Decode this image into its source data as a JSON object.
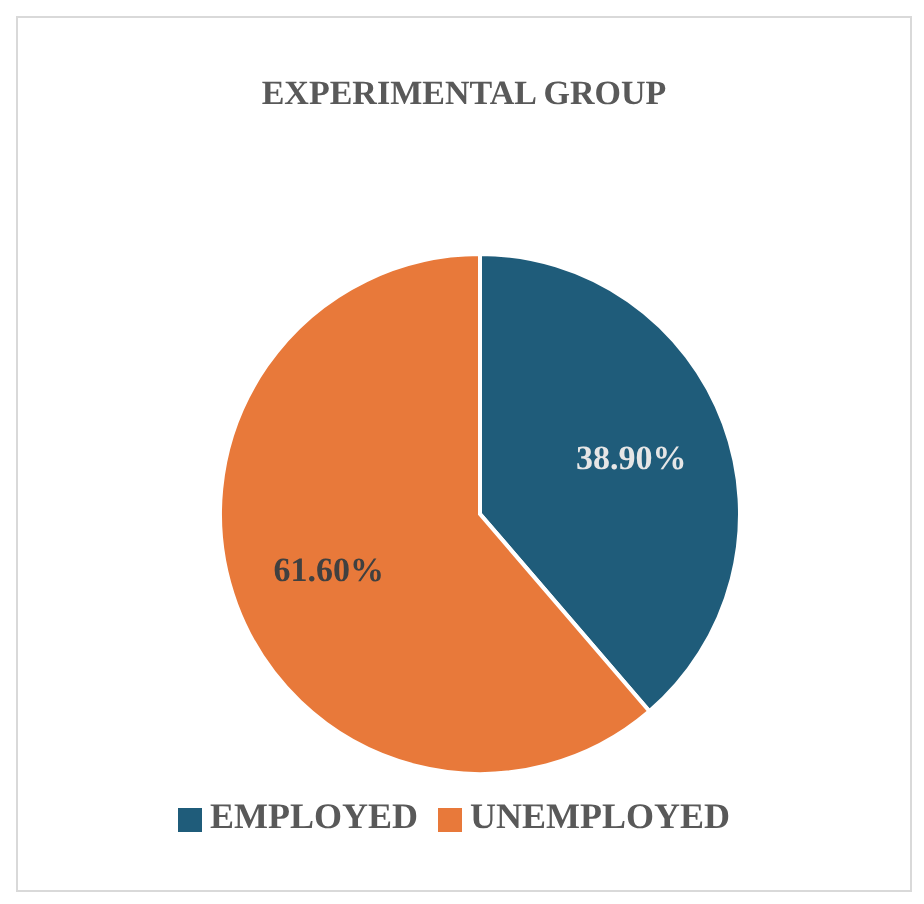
{
  "chart_data": {
    "type": "pie",
    "title": "EXPERIMENTAL GROUP",
    "categories": [
      "EMPLOYED",
      "UNEMPLOYED"
    ],
    "values": [
      38.9,
      61.6
    ],
    "value_labels": [
      "38.90%",
      "61.60%"
    ],
    "colors": [
      "#1f5c7a",
      "#e8793a"
    ],
    "legend": "bottom"
  }
}
